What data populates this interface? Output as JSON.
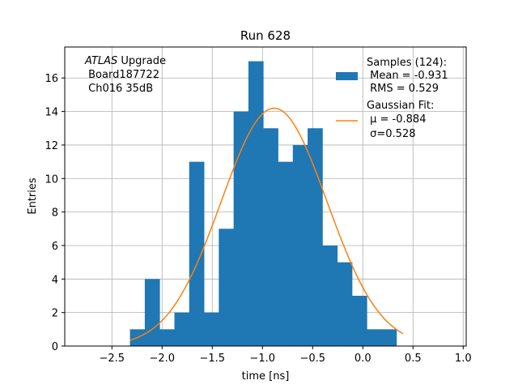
{
  "chart_data": {
    "type": "bar",
    "title": "Run 628",
    "xlabel": "time [ns]",
    "ylabel": "Entries",
    "xlim": [
      -2.97,
      1.03
    ],
    "ylim": [
      0,
      17.85
    ],
    "grid": true,
    "x_ticks": [
      -2.5,
      -2.0,
      -1.5,
      -1.0,
      -0.5,
      0.0,
      0.5,
      1.0
    ],
    "x_tick_labels": [
      "−2.5",
      "−2.0",
      "−1.5",
      "−1.0",
      "−0.5",
      "0.0",
      "0.5",
      "1.0"
    ],
    "y_ticks": [
      0,
      2,
      4,
      6,
      8,
      10,
      12,
      14,
      16
    ],
    "y_tick_labels": [
      "0",
      "2",
      "4",
      "6",
      "8",
      "10",
      "12",
      "14",
      "16"
    ],
    "bin_width": 0.1475,
    "bin_edges_start": -2.32,
    "values": [
      1,
      4,
      1,
      2,
      11,
      2,
      7,
      14,
      17,
      13,
      11,
      12,
      13,
      6,
      5,
      3,
      1,
      1
    ],
    "fit": {
      "type": "gaussian",
      "mu": -0.884,
      "sigma": 0.528,
      "amplitude": 14.2,
      "x_range": [
        -2.32,
        0.4
      ]
    },
    "colors": {
      "hist": "#1f77b4",
      "fit": "#ff7f0e",
      "grid": "#b0b0b0"
    },
    "legend": {
      "placement": "top-right",
      "hist_lines": [
        "Samples (124):",
        " Mean = -0.931",
        " RMS = 0.529"
      ],
      "fit_lines": [
        "Gaussian Fit:",
        " μ = -0.884",
        " σ=0.528"
      ]
    },
    "annotation": {
      "placement": "top-left",
      "italic_word": "ATLAS",
      "line1_rest": " Upgrade",
      "line2": " Board187722",
      "line3": " Ch016 35dB"
    }
  }
}
